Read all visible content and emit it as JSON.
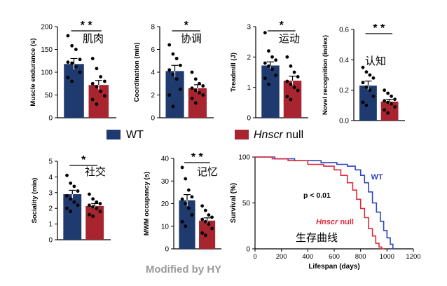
{
  "colors": {
    "wt": "#1f3a6e",
    "null": "#a8242f",
    "wt_line": "#2b46c0",
    "null_line": "#e0283a",
    "axis": "#000000",
    "watermark": "#9a9a9a"
  },
  "legend": {
    "wt": "WT",
    "null_italic": "Hnscr",
    "null_suffix": " null"
  },
  "watermark": "Modified by HY",
  "chart_data": [
    {
      "type": "bar",
      "id": "muscle",
      "title": "肌肉",
      "ylabel": "Muscle endurance (s)",
      "ylim": [
        0,
        200
      ],
      "ticks": [
        "0",
        "50",
        "100",
        "150",
        "200"
      ],
      "sig": "* *",
      "series": [
        {
          "name": "WT",
          "mean": 118,
          "sem": 12,
          "points": [
            180,
            158,
            150,
            128,
            122,
            120,
            112,
            100,
            88,
            80
          ]
        },
        {
          "name": "Hnscr null",
          "mean": 72,
          "sem": 10,
          "points": [
            130,
            108,
            90,
            80,
            75,
            68,
            58,
            48,
            40,
            30
          ]
        }
      ]
    },
    {
      "type": "bar",
      "id": "coord",
      "title": "协调",
      "ylabel": "Coordination (min)",
      "ylim": [
        0,
        8
      ],
      "ticks": [
        "0",
        "2",
        "4",
        "6",
        "8"
      ],
      "sig": "*",
      "series": [
        {
          "name": "WT",
          "mean": 4.1,
          "sem": 0.5,
          "points": [
            6.4,
            5.6,
            5.2,
            4.6,
            4.2,
            3.8,
            3.4,
            2.5,
            2.0,
            1.0
          ]
        },
        {
          "name": "Hnscr null",
          "mean": 2.6,
          "sem": 0.3,
          "points": [
            4.0,
            3.4,
            3.0,
            2.8,
            2.6,
            2.4,
            2.2,
            2.0,
            1.7,
            1.3
          ]
        }
      ]
    },
    {
      "type": "bar",
      "id": "tread",
      "title": "运动",
      "ylabel": "Treadmill (J)",
      "ylim": [
        0,
        3
      ],
      "ticks": [
        "0",
        "1",
        "2",
        "3"
      ],
      "sig": "*",
      "series": [
        {
          "name": "WT",
          "mean": 1.72,
          "sem": 0.12,
          "points": [
            2.8,
            2.2,
            2.0,
            1.9,
            1.8,
            1.7,
            1.6,
            1.4,
            1.3,
            1.1
          ]
        },
        {
          "name": "Hnscr null",
          "mean": 1.22,
          "sem": 0.15,
          "points": [
            2.0,
            1.7,
            1.5,
            1.35,
            1.2,
            1.1,
            1.0,
            0.9,
            0.7,
            0.6
          ]
        }
      ]
    },
    {
      "type": "bar",
      "id": "novel",
      "title": "认知",
      "ylabel": "Novel recognition (index)",
      "ylim": [
        0,
        0.6
      ],
      "ticks": [
        "0.0",
        "0.2",
        "0.4",
        "0.6"
      ],
      "sig": "* *",
      "series": [
        {
          "name": "WT",
          "mean": 0.23,
          "sem": 0.03,
          "points": [
            0.35,
            0.32,
            0.3,
            0.28,
            0.25,
            0.22,
            0.2,
            0.16,
            0.12,
            0.1
          ]
        },
        {
          "name": "Hnscr null",
          "mean": 0.125,
          "sem": 0.015,
          "points": [
            0.2,
            0.18,
            0.16,
            0.14,
            0.13,
            0.12,
            0.11,
            0.09,
            0.07,
            0.05
          ]
        }
      ]
    },
    {
      "type": "bar",
      "id": "social",
      "title": "社交",
      "ylabel": "Sociality (min)",
      "ylim": [
        0,
        5
      ],
      "ticks": [
        "0",
        "1",
        "2",
        "3",
        "4",
        "5"
      ],
      "sig": "*",
      "series": [
        {
          "name": "WT",
          "mean": 2.9,
          "sem": 0.25,
          "points": [
            4.1,
            3.6,
            3.4,
            3.1,
            2.8,
            2.6,
            2.4,
            2.2,
            2.0,
            1.8
          ]
        },
        {
          "name": "Hnscr null",
          "mean": 2.15,
          "sem": 0.15,
          "points": [
            2.9,
            2.6,
            2.4,
            2.3,
            2.2,
            2.1,
            2.0,
            1.8,
            1.6,
            1.5
          ]
        }
      ]
    },
    {
      "type": "bar",
      "id": "mwm",
      "title": "记忆",
      "ylabel": "MWM occupancy (s)",
      "ylim": [
        0,
        40
      ],
      "ticks": [
        "0",
        "10",
        "20",
        "30",
        "40"
      ],
      "sig": "* *",
      "series": [
        {
          "name": "WT",
          "mean": 21.5,
          "sem": 2.5,
          "points": [
            36,
            31,
            26,
            23,
            22,
            20,
            18,
            15,
            12,
            10
          ]
        },
        {
          "name": "Hnscr null",
          "mean": 12.5,
          "sem": 1.2,
          "points": [
            19,
            17,
            15,
            14,
            13,
            12,
            11,
            9,
            7,
            6
          ]
        }
      ]
    },
    {
      "type": "line",
      "id": "survival",
      "title": "生存曲线",
      "xlabel": "Lifespan (days)",
      "ylabel": "Survival (%)",
      "xlim": [
        0,
        1200
      ],
      "ylim": [
        0,
        100
      ],
      "xticks": [
        "0",
        "200",
        "400",
        "600",
        "800",
        "1000",
        "1200"
      ],
      "yticks": [
        "0",
        "50",
        "100"
      ],
      "annotation": "p < 0.01",
      "series": [
        {
          "name": "WT",
          "x": [
            0,
            150,
            150,
            300,
            300,
            500,
            500,
            620,
            620,
            700,
            700,
            760,
            760,
            800,
            800,
            830,
            830,
            860,
            860,
            890,
            890,
            920,
            920,
            950,
            950,
            975,
            975,
            1000,
            1000,
            1025,
            1025,
            1045,
            1045,
            1060
          ],
          "y": [
            100,
            100,
            98,
            98,
            96,
            96,
            94,
            94,
            92,
            92,
            90,
            90,
            86,
            86,
            80,
            80,
            72,
            72,
            62,
            62,
            50,
            50,
            40,
            40,
            30,
            30,
            20,
            20,
            12,
            12,
            5,
            5,
            0,
            0
          ]
        },
        {
          "name": "Hnscr null",
          "x": [
            0,
            130,
            130,
            250,
            250,
            400,
            400,
            520,
            520,
            600,
            600,
            650,
            650,
            700,
            700,
            740,
            740,
            770,
            770,
            800,
            800,
            830,
            830,
            860,
            860,
            890,
            890,
            915,
            915,
            940,
            940,
            960,
            960,
            980
          ],
          "y": [
            100,
            100,
            98,
            98,
            96,
            96,
            92,
            92,
            90,
            90,
            86,
            86,
            80,
            80,
            72,
            72,
            64,
            64,
            54,
            54,
            44,
            44,
            34,
            34,
            22,
            22,
            14,
            14,
            6,
            6,
            2,
            2,
            0,
            0
          ]
        }
      ]
    }
  ]
}
